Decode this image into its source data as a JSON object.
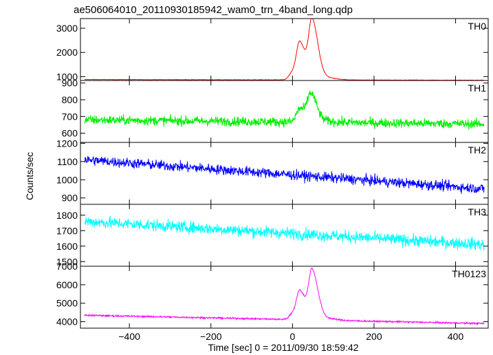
{
  "chart_data": {
    "type": "line",
    "title": "ae506064010_20110930185942_wam0_trn_4band_long.qdp",
    "xlabel": "Time [sec] 0 = 2011/09/30 18:59:42",
    "ylabel": "Counts/sec",
    "xlim": [
      -520,
      480
    ],
    "xticks": [
      -400,
      -200,
      0,
      200,
      400
    ],
    "grid": false,
    "panels": [
      {
        "label": "TH0",
        "color": "#ff0000",
        "ylim": [
          840,
          3400
        ],
        "yticks": [
          1000,
          2000,
          3000
        ],
        "baseline_start": 880,
        "baseline_end": 850,
        "noise": 22,
        "peaks": [
          {
            "x": 0,
            "height": 300
          },
          {
            "x": 18,
            "height": 1450
          },
          {
            "x": 48,
            "height": 2350
          }
        ]
      },
      {
        "label": "TH1",
        "color": "#00ee00",
        "ylim": [
          545,
          915
        ],
        "yticks": [
          600,
          700,
          800,
          900
        ],
        "baseline_start": 680,
        "baseline_end": 655,
        "noise": 55,
        "peaks": [
          {
            "x": 18,
            "height": 80
          },
          {
            "x": 45,
            "height": 160
          }
        ]
      },
      {
        "label": "TH2",
        "color": "#0000ff",
        "ylim": [
          865,
          1205
        ],
        "yticks": [
          900,
          1000,
          1100,
          1200
        ],
        "baseline_start": 1110,
        "baseline_end": 950,
        "noise": 55,
        "peaks": []
      },
      {
        "label": "TH3",
        "color": "#00ffff",
        "ylim": [
          1470,
          1870
        ],
        "yticks": [
          1500,
          1600,
          1700,
          1800
        ],
        "baseline_start": 1760,
        "baseline_end": 1610,
        "noise": 75,
        "peaks": []
      },
      {
        "label": "TH0123",
        "color": "#ff00ff",
        "ylim": [
          3650,
          7000
        ],
        "yticks": [
          4000,
          5000,
          6000,
          7000
        ],
        "baseline_start": 4350,
        "baseline_end": 3900,
        "noise": 90,
        "peaks": [
          {
            "x": 0,
            "height": 300
          },
          {
            "x": 18,
            "height": 1450
          },
          {
            "x": 48,
            "height": 2550
          }
        ]
      }
    ]
  }
}
